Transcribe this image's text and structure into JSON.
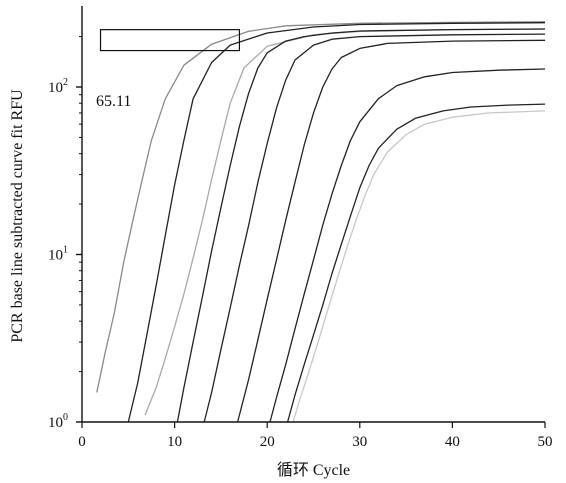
{
  "chart_data": {
    "type": "line",
    "xlabel": "循环 Cycle",
    "ylabel": "PCR base line subtracted curve fit RFU",
    "xlim": [
      0,
      50
    ],
    "ylim": [
      1,
      250
    ],
    "yscale": "log",
    "x_ticks": [
      "0",
      "10",
      "20",
      "30",
      "40",
      "50"
    ],
    "y_ticks": [
      {
        "base": "10",
        "exp": "0"
      },
      {
        "base": "10",
        "exp": "1"
      },
      {
        "base": "10",
        "exp": "2"
      }
    ],
    "grid": false,
    "legend": "none",
    "annotations": [
      {
        "text": "65.11",
        "type": "threshold-label"
      }
    ],
    "threshold_box": {
      "x": [
        2,
        17
      ],
      "y": [
        165,
        220
      ]
    },
    "series": [
      {
        "color": "#8a8a8a",
        "x": [
          1.6,
          2.5,
          3.5,
          4.5,
          5.5,
          6.5,
          7.5,
          9,
          11,
          14,
          18,
          22,
          30,
          40,
          50
        ],
        "y": [
          1.5,
          2.6,
          4.5,
          9,
          16,
          28,
          48,
          85,
          135,
          180,
          215,
          232,
          240,
          243,
          245
        ]
      },
      {
        "color": "#222222",
        "x": [
          5,
          6,
          7,
          8,
          9,
          10,
          11,
          12,
          14,
          16,
          20,
          25,
          30,
          40,
          50
        ],
        "y": [
          1,
          1.7,
          3.3,
          6.5,
          13,
          26,
          48,
          85,
          140,
          178,
          210,
          228,
          236,
          240,
          242
        ]
      },
      {
        "color": "#a9a9a9",
        "x": [
          6.8,
          8,
          9,
          10,
          11,
          12,
          13,
          14,
          15,
          16,
          17.5,
          20,
          25,
          30,
          40,
          50
        ],
        "y": [
          1.1,
          1.6,
          2.4,
          3.7,
          5.8,
          9.5,
          16,
          28,
          48,
          80,
          130,
          175,
          205,
          215,
          220,
          222
        ]
      },
      {
        "color": "#222222",
        "x": [
          10.3,
          11,
          12,
          13,
          14,
          15,
          16,
          17,
          18,
          19,
          20,
          22,
          24,
          27,
          30,
          40,
          50
        ],
        "y": [
          1,
          1.6,
          3,
          5.6,
          10.5,
          19,
          34,
          58,
          92,
          130,
          160,
          188,
          200,
          210,
          216,
          220,
          222
        ]
      },
      {
        "color": "#222222",
        "x": [
          13.2,
          14,
          15,
          16,
          17,
          18,
          19,
          20,
          21,
          22,
          23,
          25,
          27,
          30,
          40,
          50
        ],
        "y": [
          1,
          1.5,
          2.7,
          4.8,
          8.6,
          15,
          27,
          46,
          75,
          110,
          145,
          178,
          193,
          200,
          205,
          207
        ]
      },
      {
        "color": "#222222",
        "x": [
          16.8,
          18,
          19,
          20,
          21,
          22,
          23,
          24,
          25,
          26,
          27,
          28,
          30,
          33,
          40,
          50
        ],
        "y": [
          1,
          1.8,
          3.1,
          5.4,
          9.3,
          16,
          27,
          45,
          70,
          100,
          128,
          150,
          170,
          182,
          188,
          190
        ]
      },
      {
        "color": "#222222",
        "x": [
          20.3,
          21,
          22,
          23,
          24,
          25,
          26,
          27,
          28,
          29,
          30,
          32,
          34,
          37,
          40,
          45,
          50
        ],
        "y": [
          1,
          1.4,
          2.2,
          3.6,
          5.8,
          9.3,
          15,
          23,
          34,
          48,
          62,
          85,
          102,
          115,
          122,
          126,
          128
        ]
      },
      {
        "color": "#222222",
        "x": [
          22.2,
          23,
          24,
          25,
          26,
          27,
          28,
          29,
          30,
          31,
          32,
          34,
          36,
          39,
          42,
          46,
          50
        ],
        "y": [
          1,
          1.45,
          2.2,
          3.3,
          5,
          7.7,
          11.5,
          17,
          25,
          34,
          43,
          56,
          65,
          72,
          76,
          78,
          79
        ]
      },
      {
        "color": "#c8c8c8",
        "x": [
          22.8,
          23.5,
          24.5,
          25.5,
          26.5,
          27.5,
          28.5,
          29.5,
          30.5,
          31.5,
          33,
          35,
          37,
          40,
          44,
          50
        ],
        "y": [
          1,
          1.35,
          2,
          3,
          4.6,
          7,
          10.5,
          15.5,
          22,
          30,
          41,
          52,
          60,
          66,
          70,
          72
        ]
      }
    ]
  }
}
